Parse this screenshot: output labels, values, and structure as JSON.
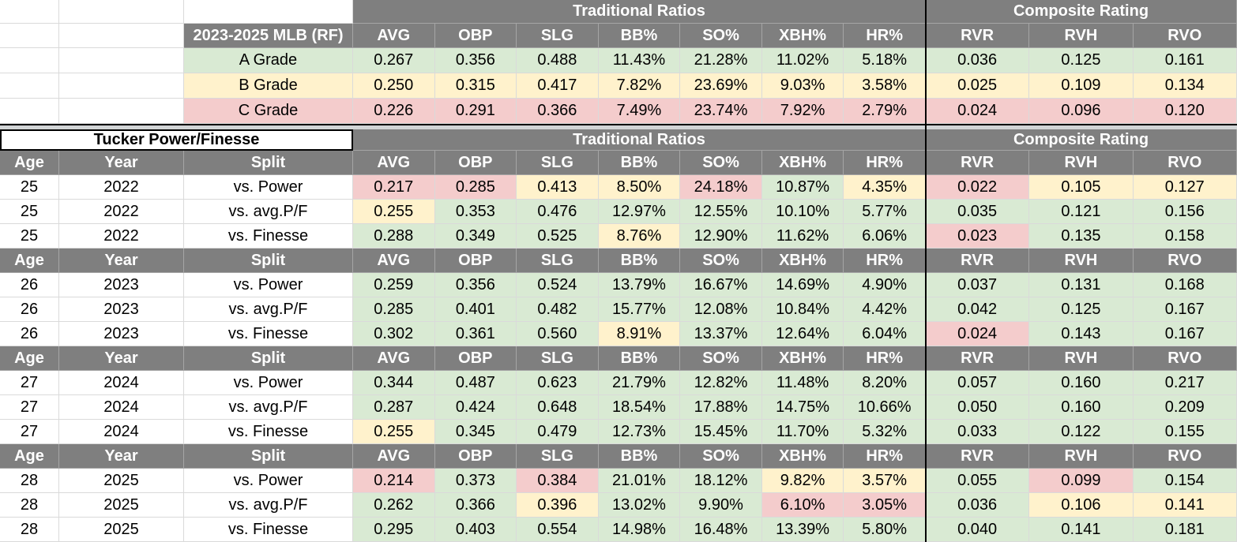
{
  "app": {
    "kind": "spreadsheet-stats-sheet"
  },
  "colors": {
    "green": "#d9ead3",
    "yellow": "#fff2cc",
    "red": "#f4cccc",
    "header_gray": "#7f7f7f",
    "header_text": "#ffffff",
    "band_gray": "#d2d5d6",
    "gridline": "#dadada",
    "divider_black": "#000000",
    "cell_text": "#000000"
  },
  "section_top": {
    "group_headers": [
      {
        "label": "Traditional Ratios"
      },
      {
        "label": "Composite Rating"
      }
    ],
    "title": "2023-2025 MLB (RF)",
    "stat_headers": [
      "AVG",
      "OBP",
      "SLG",
      "BB%",
      "SO%",
      "XBH%",
      "HR%",
      "RVR",
      "RVH",
      "RVO"
    ],
    "rows": [
      {
        "label": "A Grade",
        "tone": "g",
        "values": [
          "0.267",
          "0.356",
          "0.488",
          "11.43%",
          "21.28%",
          "11.02%",
          "5.18%",
          "0.036",
          "0.125",
          "0.161"
        ]
      },
      {
        "label": "B Grade",
        "tone": "y",
        "values": [
          "0.250",
          "0.315",
          "0.417",
          "7.82%",
          "23.69%",
          "9.03%",
          "3.58%",
          "0.025",
          "0.109",
          "0.134"
        ]
      },
      {
        "label": "C Grade",
        "tone": "r",
        "values": [
          "0.226",
          "0.291",
          "0.366",
          "7.49%",
          "23.74%",
          "7.92%",
          "2.79%",
          "0.024",
          "0.096",
          "0.120"
        ]
      }
    ]
  },
  "section_player": {
    "title": "Tucker Power/Finesse",
    "group_headers": [
      {
        "label": "Traditional Ratios"
      },
      {
        "label": "Composite Rating"
      }
    ],
    "left_headers": [
      "Age",
      "Year",
      "Split"
    ],
    "stat_headers": [
      "AVG",
      "OBP",
      "SLG",
      "BB%",
      "SO%",
      "XBH%",
      "HR%",
      "RVR",
      "RVH",
      "RVO"
    ],
    "groups": [
      {
        "age": "25",
        "year": "2022",
        "rows": [
          {
            "split": "vs. Power",
            "values": [
              "0.217",
              "0.285",
              "0.413",
              "8.50%",
              "24.18%",
              "10.87%",
              "4.35%",
              "0.022",
              "0.105",
              "0.127"
            ],
            "tones": [
              "r",
              "r",
              "y",
              "y",
              "r",
              "g",
              "y",
              "r",
              "y",
              "y"
            ]
          },
          {
            "split": "vs. avg.P/F",
            "values": [
              "0.255",
              "0.353",
              "0.476",
              "12.97%",
              "12.55%",
              "10.10%",
              "5.77%",
              "0.035",
              "0.121",
              "0.156"
            ],
            "tones": [
              "y",
              "g",
              "g",
              "g",
              "g",
              "g",
              "g",
              "g",
              "g",
              "g"
            ]
          },
          {
            "split": "vs. Finesse",
            "values": [
              "0.288",
              "0.349",
              "0.525",
              "8.76%",
              "12.90%",
              "11.62%",
              "6.06%",
              "0.023",
              "0.135",
              "0.158"
            ],
            "tones": [
              "g",
              "g",
              "g",
              "y",
              "g",
              "g",
              "g",
              "r",
              "g",
              "g"
            ]
          }
        ]
      },
      {
        "age": "26",
        "year": "2023",
        "rows": [
          {
            "split": "vs. Power",
            "values": [
              "0.259",
              "0.356",
              "0.524",
              "13.79%",
              "16.67%",
              "14.69%",
              "4.90%",
              "0.037",
              "0.131",
              "0.168"
            ],
            "tones": [
              "g",
              "g",
              "g",
              "g",
              "g",
              "g",
              "g",
              "g",
              "g",
              "g"
            ]
          },
          {
            "split": "vs. avg.P/F",
            "values": [
              "0.285",
              "0.401",
              "0.482",
              "15.77%",
              "12.08%",
              "10.84%",
              "4.42%",
              "0.042",
              "0.125",
              "0.167"
            ],
            "tones": [
              "g",
              "g",
              "g",
              "g",
              "g",
              "g",
              "g",
              "g",
              "g",
              "g"
            ]
          },
          {
            "split": "vs. Finesse",
            "values": [
              "0.302",
              "0.361",
              "0.560",
              "8.91%",
              "13.37%",
              "12.64%",
              "6.04%",
              "0.024",
              "0.143",
              "0.167"
            ],
            "tones": [
              "g",
              "g",
              "g",
              "y",
              "g",
              "g",
              "g",
              "r",
              "g",
              "g"
            ]
          }
        ]
      },
      {
        "age": "27",
        "year": "2024",
        "rows": [
          {
            "split": "vs. Power",
            "values": [
              "0.344",
              "0.487",
              "0.623",
              "21.79%",
              "12.82%",
              "11.48%",
              "8.20%",
              "0.057",
              "0.160",
              "0.217"
            ],
            "tones": [
              "g",
              "g",
              "g",
              "g",
              "g",
              "g",
              "g",
              "g",
              "g",
              "g"
            ]
          },
          {
            "split": "vs. avg.P/F",
            "values": [
              "0.287",
              "0.424",
              "0.648",
              "18.54%",
              "17.88%",
              "14.75%",
              "10.66%",
              "0.050",
              "0.160",
              "0.209"
            ],
            "tones": [
              "g",
              "g",
              "g",
              "g",
              "g",
              "g",
              "g",
              "g",
              "g",
              "g"
            ]
          },
          {
            "split": "vs. Finesse",
            "values": [
              "0.255",
              "0.345",
              "0.479",
              "12.73%",
              "15.45%",
              "11.70%",
              "5.32%",
              "0.033",
              "0.122",
              "0.155"
            ],
            "tones": [
              "y",
              "g",
              "g",
              "g",
              "g",
              "g",
              "g",
              "g",
              "g",
              "g"
            ]
          }
        ]
      },
      {
        "age": "28",
        "year": "2025",
        "rows": [
          {
            "split": "vs. Power",
            "values": [
              "0.214",
              "0.373",
              "0.384",
              "21.01%",
              "18.12%",
              "9.82%",
              "3.57%",
              "0.055",
              "0.099",
              "0.154"
            ],
            "tones": [
              "r",
              "g",
              "r",
              "g",
              "g",
              "y",
              "y",
              "g",
              "r",
              "g"
            ]
          },
          {
            "split": "vs. avg.P/F",
            "values": [
              "0.262",
              "0.366",
              "0.396",
              "13.02%",
              "9.90%",
              "6.10%",
              "3.05%",
              "0.036",
              "0.106",
              "0.141"
            ],
            "tones": [
              "g",
              "g",
              "y",
              "g",
              "g",
              "r",
              "r",
              "g",
              "y",
              "y"
            ]
          },
          {
            "split": "vs. Finesse",
            "values": [
              "0.295",
              "0.403",
              "0.554",
              "14.98%",
              "16.48%",
              "13.39%",
              "5.80%",
              "0.040",
              "0.141",
              "0.181"
            ],
            "tones": [
              "g",
              "g",
              "g",
              "g",
              "g",
              "g",
              "g",
              "g",
              "g",
              "g"
            ]
          }
        ]
      }
    ]
  }
}
